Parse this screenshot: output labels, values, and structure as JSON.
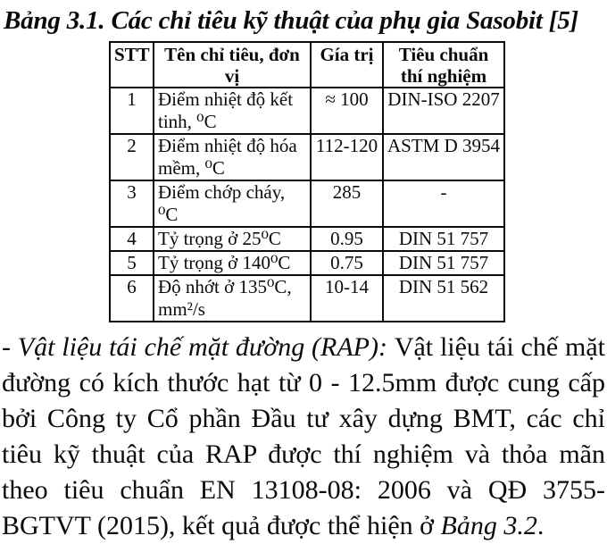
{
  "page": {
    "title": "Bảng 3.1. Các chỉ tiêu kỹ thuật của phụ gia Sasobit [5]"
  },
  "table": {
    "headers": [
      "STT",
      "Tên chỉ tiêu, đơn vị",
      "Gía trị",
      "Tiêu chuẩn thí nghiệm"
    ],
    "rows": [
      {
        "stt": "1",
        "name": "Điểm nhiệt độ kết tinh, ⁰C",
        "value": "≈ 100",
        "standard": "DIN-ISO 2207"
      },
      {
        "stt": "2",
        "name": "Điểm nhiệt độ hóa mềm, ⁰C",
        "value": "112-120",
        "standard": "ASTM D 3954"
      },
      {
        "stt": "3",
        "name": "Điểm chớp cháy, ⁰C",
        "value": "285",
        "standard": "-"
      },
      {
        "stt": "4",
        "name": "Tỷ trọng ở 25⁰C",
        "value": "0.95",
        "standard": "DIN 51 757"
      },
      {
        "stt": "5",
        "name": "Tỷ trọng ở 140⁰C",
        "value": "0.75",
        "standard": "DIN 51 757"
      },
      {
        "stt": "6",
        "name": "Độ nhớt ở 135⁰C, mm²/s",
        "value": "10-14",
        "standard": "DIN 51 562"
      }
    ]
  },
  "paragraph": {
    "lead_italic": "- Vật liệu tái chế mặt đường (RAP): ",
    "body": "Vật liệu tái chế mặt đường có kích thước hạt từ 0 - 12.5mm được cung cấp bởi Công ty Cổ phần Đầu tư xây dựng BMT, các chỉ tiêu kỹ thuật của RAP được thí nghiệm và thỏa mãn theo tiêu chuẩn EN 13108-08: 2006 và QĐ 3755-BGTVT (2015), kết quả được thể hiện ở ",
    "ref_italic": "Bảng 3.2",
    "tail": "."
  },
  "colors": {
    "text": "#0a0a0a",
    "background": "#ffffff",
    "table_border": "#0a0a0a"
  }
}
